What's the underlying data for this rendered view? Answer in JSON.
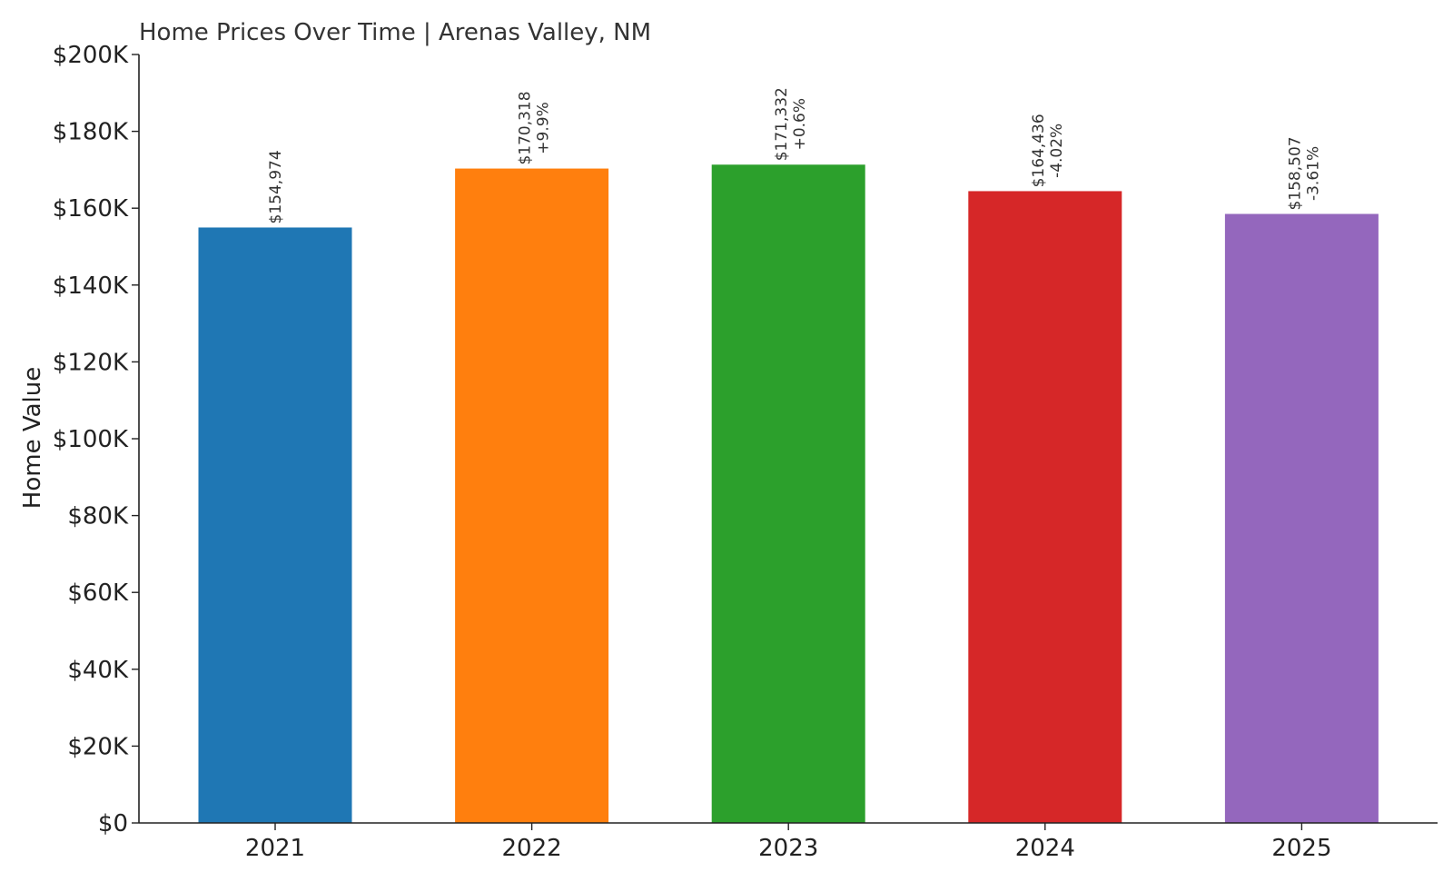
{
  "chart_data": {
    "type": "bar",
    "title": "Home Prices Over Time | Arenas Valley, NM",
    "xlabel": "",
    "ylabel": "Home Value",
    "categories": [
      "2021",
      "2022",
      "2023",
      "2024",
      "2025"
    ],
    "values": [
      154974,
      170318,
      171332,
      164436,
      158507
    ],
    "value_labels": [
      "$154,974",
      "$170,318",
      "$171,332",
      "$164,436",
      "$158,507"
    ],
    "change_labels": [
      "",
      "+9.9%",
      "+0.6%",
      "-4.02%",
      "-3.61%"
    ],
    "colors": [
      "#1f77b4",
      "#ff7f0e",
      "#2ca02c",
      "#d62728",
      "#9467bd"
    ],
    "ylim": [
      0,
      200000
    ],
    "yticks": [
      0,
      20000,
      40000,
      60000,
      80000,
      100000,
      120000,
      140000,
      160000,
      180000,
      200000
    ],
    "ytick_labels": [
      "$0",
      "$20K",
      "$40K",
      "$60K",
      "$80K",
      "$100K",
      "$120K",
      "$140K",
      "$160K",
      "$180K",
      "$200K"
    ],
    "grid": false,
    "legend": "none"
  }
}
